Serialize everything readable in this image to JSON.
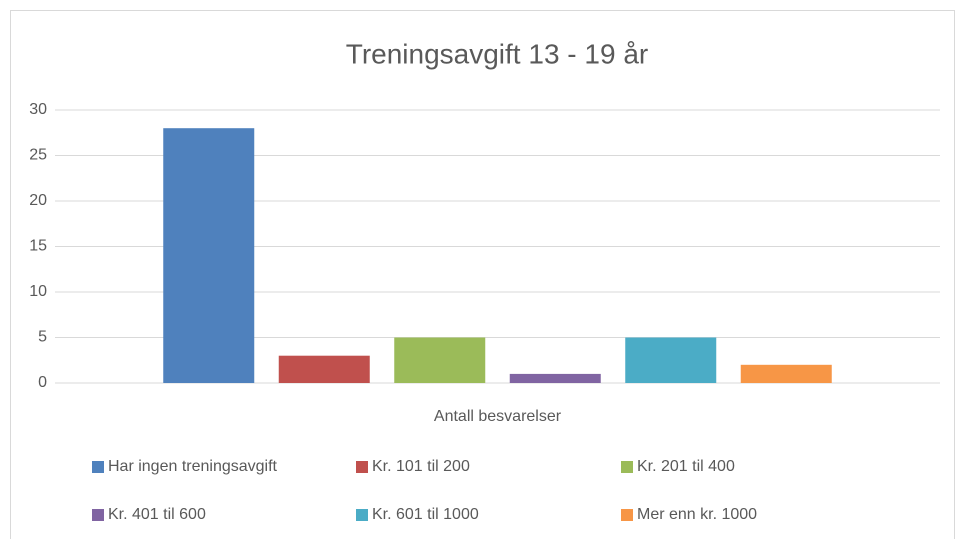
{
  "chart_data": {
    "type": "bar",
    "title": "Treningsavgift 13 - 19 år",
    "categories": [
      "Antall besvarelser"
    ],
    "series": [
      {
        "name": "Har ingen treningsavgift",
        "color": "#4f81bd",
        "values": [
          28
        ]
      },
      {
        "name": "Kr. 101 til 200",
        "color": "#c0504d",
        "values": [
          3
        ]
      },
      {
        "name": "Kr. 201 til 400",
        "color": "#9bbb59",
        "values": [
          5
        ]
      },
      {
        "name": "Kr. 401 til 600",
        "color": "#8064a2",
        "values": [
          1
        ]
      },
      {
        "name": "Kr. 601 til 1000",
        "color": "#4bacc6",
        "values": [
          5
        ]
      },
      {
        "name": "Mer enn kr. 1000",
        "color": "#f79646",
        "values": [
          2
        ]
      }
    ],
    "ylim": [
      0,
      30
    ],
    "yticks": [
      0,
      5,
      10,
      15,
      20,
      25,
      30
    ],
    "grid": true,
    "legend": "bottom"
  }
}
